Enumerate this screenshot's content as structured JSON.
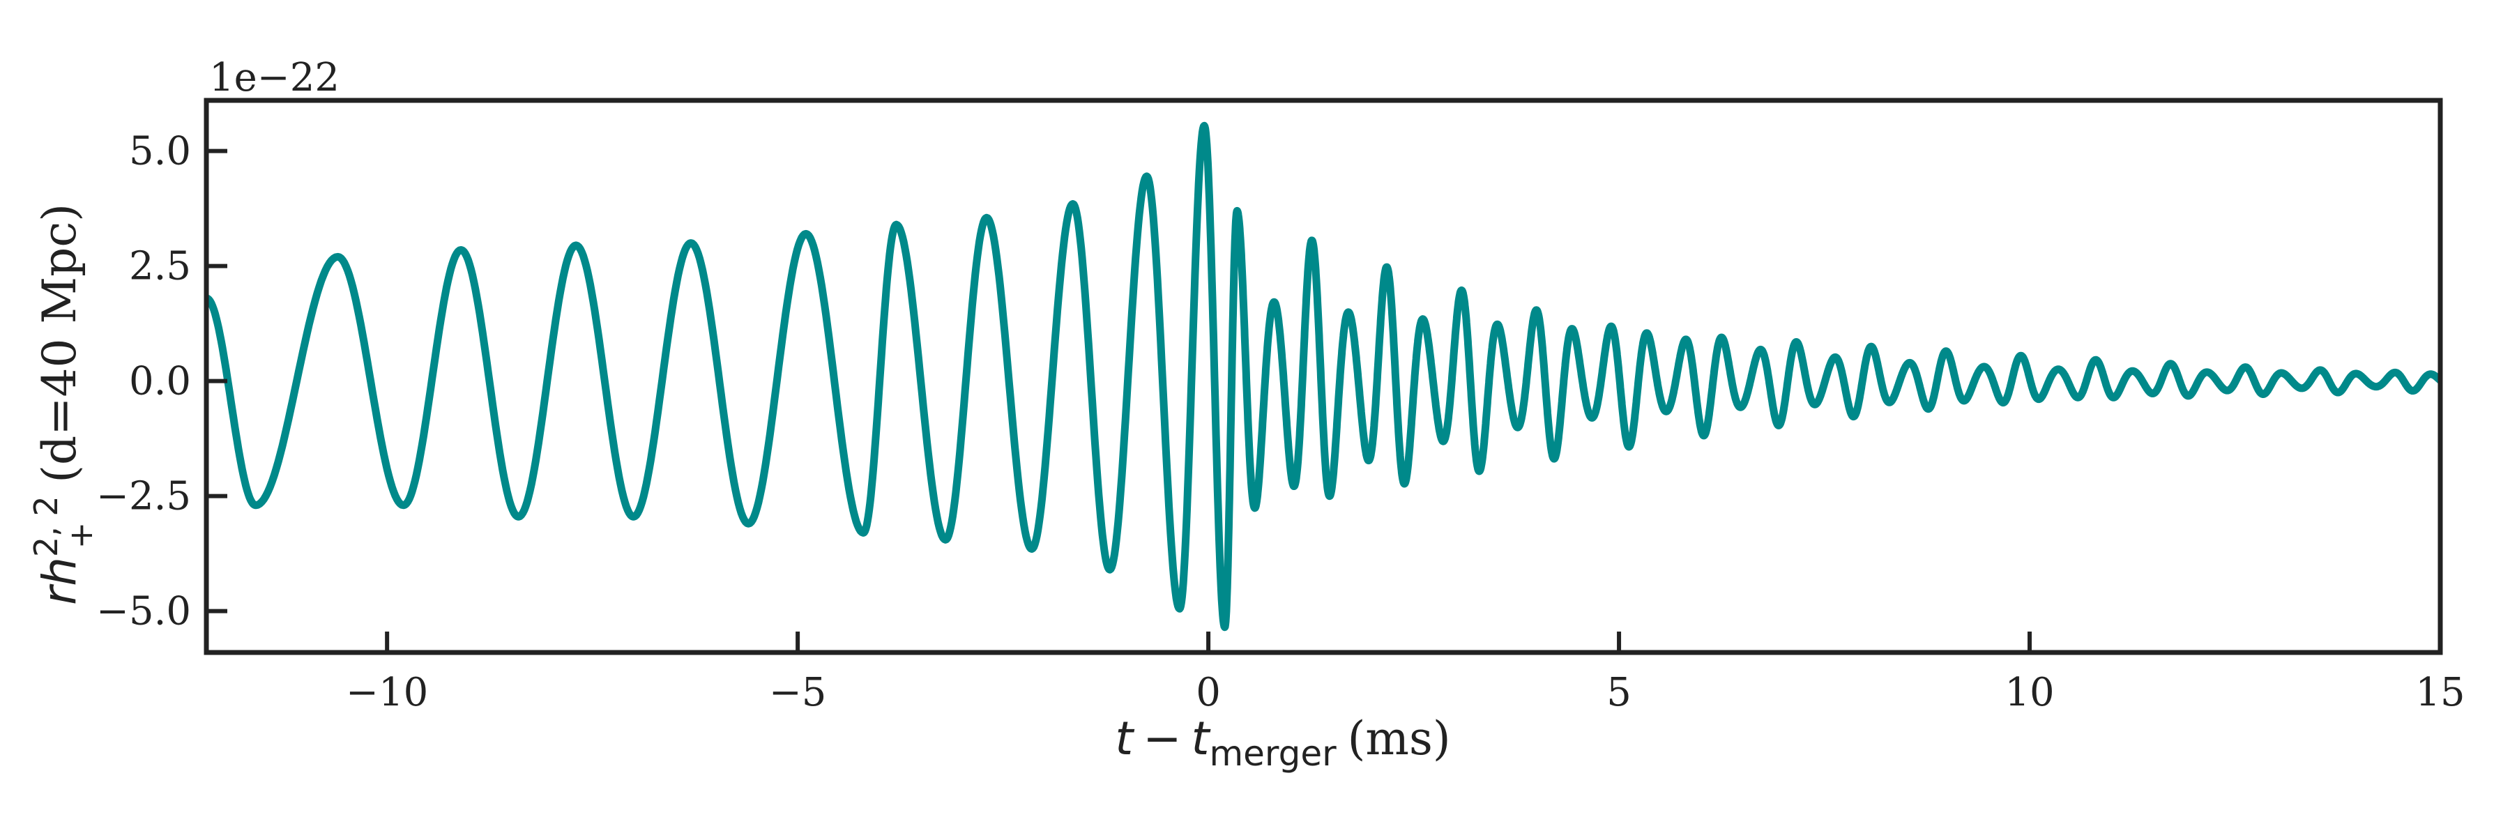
{
  "chart_data": {
    "type": "line",
    "title": "",
    "xlabel": {
      "prefix_var": "t",
      "minus": "−",
      "sub_var": "t",
      "subscript": "merger",
      "unit": "(ms)"
    },
    "ylabel": {
      "var": "rh",
      "superscript": "2, 2",
      "subscript": "+",
      "suffix": "(d=40 Mpc)"
    },
    "offset_text": "1e−22",
    "xlim": [
      -12.2,
      15
    ],
    "ylim": [
      -5.9,
      6.1
    ],
    "x_ticks": [
      -10,
      -5,
      0,
      5,
      10,
      15
    ],
    "x_tick_labels": [
      "−10",
      "−5",
      "0",
      "5",
      "10",
      "15"
    ],
    "y_ticks": [
      5.0,
      2.5,
      0.0,
      -2.5,
      -5.0
    ],
    "y_tick_labels": [
      "5.0",
      "2.5",
      "0.0",
      "−2.5",
      "−5.0"
    ],
    "grid": false,
    "legend": "none",
    "series": [
      {
        "name": "rh+ (2,2) waveform",
        "color": "#00898a",
        "description_points": {
          "t_ms": [
            -12.2,
            -11.6,
            -10.6,
            -9.8,
            -9.1,
            -8.4,
            -7.7,
            -7.0,
            -6.3,
            -5.6,
            -4.9,
            -4.2,
            -3.8,
            -3.2,
            -2.7,
            -2.15,
            -1.65,
            -1.2,
            -0.75,
            -0.35,
            -0.05,
            0.2,
            0.35
          ],
          "strain": [
            1.8,
            -2.7,
            2.7,
            -2.7,
            2.85,
            -2.95,
            2.95,
            -2.95,
            3.0,
            -3.1,
            3.2,
            -3.3,
            3.4,
            -3.45,
            3.55,
            -3.65,
            3.85,
            -4.1,
            4.45,
            -4.95,
            5.55,
            -5.35,
            3.7
          ]
        },
        "ringdown": {
          "start_ms": 0.35,
          "end_ms": 15,
          "amplitude_at_start": 3.7,
          "amplitude_at_end": 0.2,
          "frequency_khz": 2.2,
          "beat_frequency_khz": 1.05,
          "beat_depth": 0.9
        }
      }
    ]
  }
}
